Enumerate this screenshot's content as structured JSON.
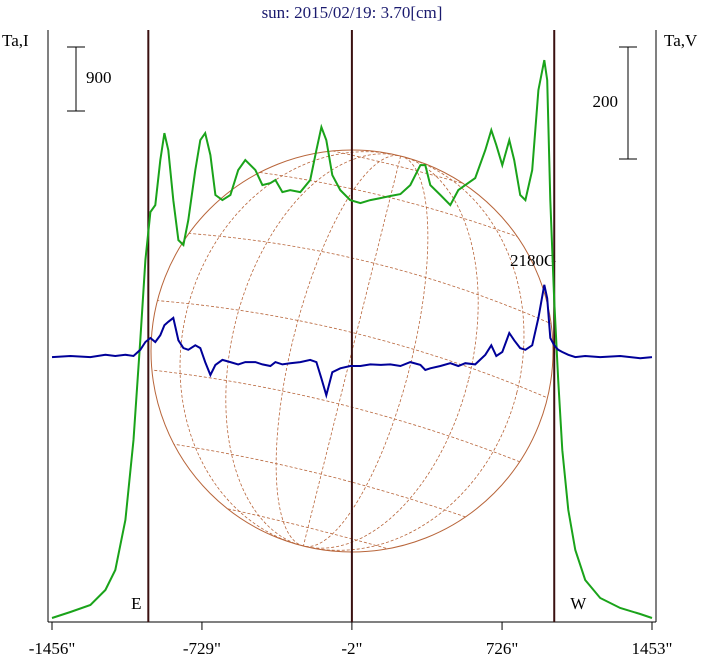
{
  "chart_data": {
    "type": "line",
    "title": "sun: 2015/02/19: 3.70[cm]",
    "y_label": "Ta,I",
    "y2_label": "Ta,V",
    "annotation": "2180G",
    "y_scale_bar": 900,
    "y2_scale_bar": 200,
    "limbs": [
      {
        "value": -989,
        "label": "E"
      },
      {
        "value": 979,
        "label": "W"
      }
    ],
    "center_line": -2,
    "xlim": [
      -1456,
      1453
    ],
    "xticks": [
      {
        "value": -1456,
        "label": "-1456\""
      },
      {
        "value": -729,
        "label": "-729\""
      },
      {
        "value": -2,
        "label": "-2\""
      },
      {
        "value": 726,
        "label": "726\""
      },
      {
        "value": 1453,
        "label": "1453\""
      }
    ],
    "ylim": [
      0,
      8325
    ],
    "y2lim": [
      -473,
      584
    ],
    "x": [
      -1456,
      -1367,
      -1270,
      -1197,
      -1149,
      -1100,
      -1061,
      -1028,
      -1003,
      -979,
      -955,
      -931,
      -911,
      -892,
      -868,
      -843,
      -819,
      -795,
      -761,
      -737,
      -713,
      -688,
      -664,
      -630,
      -591,
      -553,
      -519,
      -470,
      -436,
      -397,
      -373,
      -339,
      -301,
      -252,
      -204,
      -174,
      -150,
      -126,
      -97,
      -58,
      -10,
      39,
      87,
      136,
      184,
      233,
      281,
      330,
      354,
      378,
      427,
      475,
      514,
      548,
      596,
      645,
      674,
      698,
      727,
      761,
      785,
      814,
      839,
      872,
      902,
      931,
      945,
      960,
      979,
      998,
      1018,
      1047,
      1081,
      1129,
      1202,
      1299,
      1396,
      1453
    ],
    "series": [
      {
        "name": "I",
        "color": "#1aa31a",
        "values": [
          56,
          141,
          239,
          450,
          731,
          1434,
          2559,
          3965,
          5090,
          5765,
          5863,
          6496,
          6875,
          6636,
          5933,
          5371,
          5301,
          5652,
          6355,
          6777,
          6875,
          6566,
          6004,
          5933,
          6004,
          6355,
          6496,
          6355,
          6144,
          6172,
          6215,
          6046,
          6074,
          6046,
          6215,
          6636,
          6960,
          6777,
          6285,
          6074,
          5933,
          5891,
          5933,
          5961,
          5990,
          6018,
          6144,
          6425,
          6425,
          6144,
          6004,
          5863,
          6074,
          6144,
          6243,
          6636,
          6917,
          6707,
          6425,
          6777,
          6496,
          6004,
          5933,
          6355,
          7480,
          7902,
          7621,
          5933,
          4527,
          3403,
          2418,
          1575,
          1012,
          591,
          337,
          197,
          112,
          56
        ]
      },
      {
        "name": "V",
        "color": "#000099",
        "axis": "y2",
        "values": [
          0,
          2,
          0,
          4,
          2,
          4,
          2,
          13,
          27,
          34,
          27,
          39,
          57,
          63,
          70,
          30,
          16,
          13,
          21,
          16,
          -9,
          -32,
          -14,
          -5,
          -9,
          -13,
          -9,
          -9,
          -13,
          -16,
          -9,
          -13,
          -11,
          -9,
          -5,
          -9,
          -38,
          -68,
          -27,
          -20,
          -16,
          -16,
          -13,
          -14,
          -13,
          -16,
          -9,
          -14,
          -23,
          -20,
          -16,
          -11,
          -16,
          -11,
          -13,
          4,
          21,
          2,
          9,
          43,
          30,
          16,
          13,
          21,
          70,
          129,
          105,
          34,
          21,
          13,
          9,
          4,
          0,
          2,
          0,
          2,
          -2,
          0
        ]
      }
    ]
  }
}
